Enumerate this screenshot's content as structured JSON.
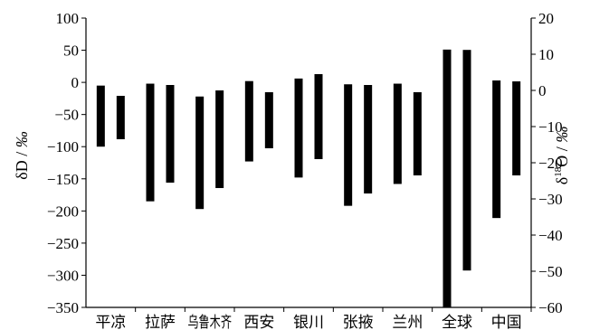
{
  "chart_data": {
    "type": "bar",
    "subtype": "floating-range",
    "categories": [
      "平凉",
      "拉萨",
      "乌鲁木齐",
      "西安",
      "银川",
      "张掖",
      "兰州",
      "全球",
      "中国"
    ],
    "left_axis": {
      "label_prefix": "δD / ",
      "label_unit": "‰",
      "lim": [
        -350,
        100
      ],
      "ticks": [
        "100",
        "50",
        "0",
        "−50",
        "−100",
        "−150",
        "−200",
        "−250",
        "−300",
        "−350"
      ]
    },
    "right_axis": {
      "label_prefix": "δ",
      "label_sup": "18",
      "label_mid": "O / ",
      "label_unit": "‰",
      "lim": [
        -60,
        20
      ],
      "ticks": [
        "20",
        "10",
        "0",
        "−10",
        "−20",
        "−30",
        "−40",
        "−50",
        "−60"
      ]
    },
    "series": [
      {
        "axis": "left",
        "ranges": [
          [
            -100,
            -5
          ],
          [
            -185,
            -2
          ],
          [
            -197,
            -22
          ],
          [
            -123,
            2
          ],
          [
            -148,
            6
          ],
          [
            -192,
            -3
          ],
          [
            -158,
            -2
          ],
          [
            -350,
            51
          ],
          [
            -211,
            3
          ]
        ]
      },
      {
        "axis": "right",
        "ranges": [
          [
            -13.5,
            -1.5
          ],
          [
            -25.5,
            1.5
          ],
          [
            -27,
            0
          ],
          [
            -16,
            -0.5
          ],
          [
            -19,
            4.5
          ],
          [
            -28.5,
            1.5
          ],
          [
            -23.5,
            -0.5
          ],
          [
            -49.8,
            11.2
          ],
          [
            -23.5,
            2.5
          ]
        ]
      }
    ],
    "bar_color": "#000000",
    "grid": false,
    "legend": "none"
  }
}
